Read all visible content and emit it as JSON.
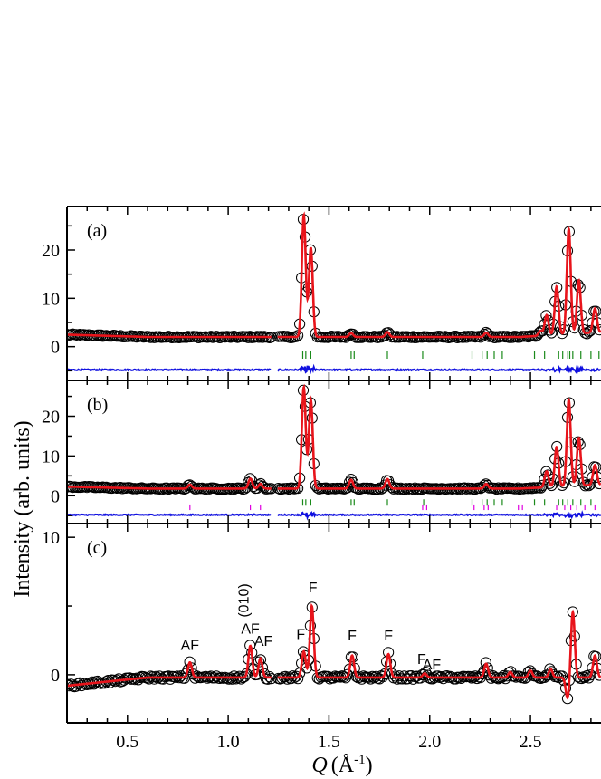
{
  "chart_data": {
    "type": "line",
    "ylabel": "Intensity (arb. units)",
    "xlabel_symbol": "Q",
    "xlabel_unit_base": "(Å",
    "xlabel_unit_exp": "-1",
    "xlabel_unit_close": ")",
    "xlim": [
      0.2,
      2.85
    ],
    "x_ticks": [
      0.5,
      1.0,
      1.5,
      2.0,
      2.5
    ],
    "x_tick_labels": [
      "0.5",
      "1.0",
      "1.5",
      "2.0",
      "2.5"
    ],
    "colors": {
      "observed": "#000000",
      "calculated": "#e8141b",
      "difference": "#1010e0",
      "nuclear_ticks": "#1a8a1a",
      "magnetic_ticks": "#e000e0"
    },
    "panels": [
      {
        "label": "(a)",
        "ylim": [
          -7,
          29
        ],
        "y_ticks": [
          0,
          10,
          20
        ],
        "y_tick_labels": [
          "0",
          "10",
          "20"
        ],
        "baseline": 2,
        "diff_offset": -4.8,
        "peaks": [
          {
            "q": 1.375,
            "height": 25.2
          },
          {
            "q": 1.41,
            "height": 18.5
          },
          {
            "q": 1.61,
            "height": 0.8
          },
          {
            "q": 1.79,
            "height": 1.0
          },
          {
            "q": 2.28,
            "height": 0.9
          },
          {
            "q": 2.55,
            "height": 1.0
          },
          {
            "q": 2.58,
            "height": 4.2
          },
          {
            "q": 2.63,
            "height": 10.0
          },
          {
            "q": 2.69,
            "height": 21.8
          },
          {
            "q": 2.74,
            "height": 11.0
          },
          {
            "q": 2.82,
            "height": 5.0
          }
        ],
        "nuclear_ticks_q": [
          1.37,
          1.385,
          1.41,
          1.61,
          1.625,
          1.79,
          1.965,
          2.21,
          2.26,
          2.285,
          2.32,
          2.36,
          2.52,
          2.57,
          2.64,
          2.66,
          2.685,
          2.695,
          2.71,
          2.75,
          2.8,
          2.84
        ],
        "magnetic_ticks_q": []
      },
      {
        "label": "(b)",
        "ylim": [
          -7,
          29
        ],
        "y_ticks": [
          0,
          10,
          20
        ],
        "y_tick_labels": [
          "0",
          "10",
          "20"
        ],
        "baseline": 1.8,
        "diff_offset": -4.8,
        "peaks": [
          {
            "q": 0.81,
            "height": 1.0
          },
          {
            "q": 1.11,
            "height": 2.5
          },
          {
            "q": 1.16,
            "height": 1.2
          },
          {
            "q": 1.375,
            "height": 25.5
          },
          {
            "q": 1.41,
            "height": 22.3
          },
          {
            "q": 1.61,
            "height": 2.2
          },
          {
            "q": 1.79,
            "height": 2.4
          },
          {
            "q": 2.28,
            "height": 1.2
          },
          {
            "q": 2.58,
            "height": 4.0
          },
          {
            "q": 2.63,
            "height": 10.0
          },
          {
            "q": 2.69,
            "height": 21.8
          },
          {
            "q": 2.74,
            "height": 12.0
          },
          {
            "q": 2.82,
            "height": 5.0
          }
        ],
        "nuclear_ticks_q": [
          1.37,
          1.385,
          1.41,
          1.61,
          1.625,
          1.79,
          1.97,
          2.21,
          2.26,
          2.285,
          2.32,
          2.36,
          2.52,
          2.57,
          2.64,
          2.66,
          2.685,
          2.71,
          2.75,
          2.8
        ],
        "magnetic_ticks_q": [
          0.81,
          1.11,
          1.16,
          1.965,
          1.985,
          2.22,
          2.27,
          2.29,
          2.44,
          2.46,
          2.63,
          2.67,
          2.7,
          2.73,
          2.77,
          2.82
        ]
      },
      {
        "label": "(c)",
        "ylim": [
          -3.5,
          11
        ],
        "y_ticks": [
          0,
          10
        ],
        "y_tick_labels": [
          "0",
          "10"
        ],
        "baseline": 0,
        "peaks": [
          {
            "q": 0.81,
            "height": 1.1
          },
          {
            "q": 1.11,
            "height": 2.3
          },
          {
            "q": 1.16,
            "height": 1.4
          },
          {
            "q": 1.375,
            "height": 1.9
          },
          {
            "q": 1.415,
            "height": 5.2
          },
          {
            "q": 1.615,
            "height": 1.6
          },
          {
            "q": 1.795,
            "height": 1.7
          },
          {
            "q": 1.975,
            "height": 0.3
          },
          {
            "q": 2.28,
            "height": 1.0
          },
          {
            "q": 2.4,
            "height": 0.4
          },
          {
            "q": 2.5,
            "height": 0.5
          },
          {
            "q": 2.6,
            "height": 0.6
          },
          {
            "q": 2.685,
            "height": -1.6
          },
          {
            "q": 2.71,
            "height": 4.8
          },
          {
            "q": 2.82,
            "height": 1.6
          }
        ],
        "annotations": [
          {
            "text": "AF",
            "q": 0.81,
            "y": 1.8
          },
          {
            "text": "AF",
            "q": 1.11,
            "y": 3.0
          },
          {
            "text": "(010)",
            "q": 1.1,
            "y": 5.4,
            "rotate": true
          },
          {
            "text": "AF",
            "q": 1.175,
            "y": 2.1
          },
          {
            "text": "F",
            "q": 1.36,
            "y": 2.6
          },
          {
            "text": "F",
            "q": 1.42,
            "y": 6.0
          },
          {
            "text": "F",
            "q": 1.615,
            "y": 2.5
          },
          {
            "text": "F",
            "q": 1.795,
            "y": 2.5
          },
          {
            "text": "F",
            "q": 1.96,
            "y": 0.8
          },
          {
            "text": "AF",
            "q": 2.01,
            "y": 0.4
          }
        ]
      }
    ]
  }
}
